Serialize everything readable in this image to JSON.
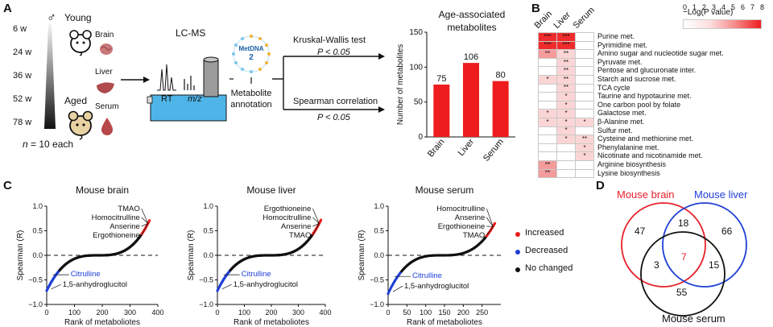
{
  "panel_letters": {
    "a": "A",
    "b": "B",
    "c": "C",
    "d": "D"
  },
  "panel_a": {
    "sex_symbol": "♂",
    "ages": [
      "6 w",
      "24 w",
      "36 w",
      "52 w",
      "78 w"
    ],
    "young_label": "Young",
    "aged_label": "Aged",
    "tissues": [
      "Brain",
      "Liver",
      "Serum"
    ],
    "n_label_italic": "n",
    "n_label_rest": " = 10 each",
    "lcms_label": "LC-MS",
    "rt_label": "RT",
    "mz_label": "m/z",
    "metdna_label": "MetDNA",
    "metdna_version": "2",
    "annotation_label_1": "Metabolite",
    "annotation_label_2": "annotation",
    "test1_label": "Kruskal-Wallis test",
    "test1_p": "P < 0.05",
    "test2_label": "Spearman correlation",
    "test2_p": "P < 0.05"
  },
  "panel_a_chart": {
    "chart_data": {
      "type": "bar",
      "title": "Age-associated metabolites",
      "ylabel": "Number of metabolites",
      "categories": [
        "Brain",
        "Liver",
        "Serum"
      ],
      "values": [
        75,
        106,
        80
      ],
      "ylim": [
        0,
        150
      ],
      "yticks": [
        "0",
        "50",
        "100",
        "150"
      ],
      "bar_color": "#ee1c1c"
    }
  },
  "panel_b": {
    "legend_title": "−Log(P value)",
    "legend_ticks": [
      "0",
      "1",
      "2",
      "3",
      "4",
      "5",
      "6",
      "7",
      "8"
    ],
    "columns": [
      "Brain",
      "Liver",
      "Serum"
    ],
    "rows": [
      {
        "name": "Purine met.",
        "cells": [
          "***",
          "***",
          ""
        ],
        "shade": [
          3,
          3,
          0
        ]
      },
      {
        "name": "Pyrimidine met.",
        "cells": [
          "***",
          "***",
          ""
        ],
        "shade": [
          3,
          3,
          0
        ]
      },
      {
        "name": "Amino sugar and nucleotide sugar met.",
        "cells": [
          "**",
          "**",
          ""
        ],
        "shade": [
          2,
          1,
          0
        ]
      },
      {
        "name": "Pyruvate met.",
        "cells": [
          "",
          "**",
          ""
        ],
        "shade": [
          0,
          1,
          0
        ]
      },
      {
        "name": "Pentose and glucuronate inter.",
        "cells": [
          "",
          "**",
          ""
        ],
        "shade": [
          0,
          1,
          0
        ]
      },
      {
        "name": "Starch and sucrose met.",
        "cells": [
          "*",
          "**",
          ""
        ],
        "shade": [
          1,
          1,
          0
        ]
      },
      {
        "name": "TCA cycle",
        "cells": [
          "",
          "**",
          ""
        ],
        "shade": [
          0,
          1,
          0
        ]
      },
      {
        "name": "Taurine and hypotaurine met.",
        "cells": [
          "",
          "*",
          ""
        ],
        "shade": [
          0,
          1,
          0
        ]
      },
      {
        "name": "One carbon pool by folate",
        "cells": [
          "",
          "*",
          ""
        ],
        "shade": [
          0,
          1,
          0
        ]
      },
      {
        "name": "Galactose met.",
        "cells": [
          "*",
          "*",
          ""
        ],
        "shade": [
          1,
          1,
          0
        ]
      },
      {
        "name": "β-Alanine met.",
        "cells": [
          "*",
          "*",
          "*"
        ],
        "shade": [
          1,
          1,
          1
        ]
      },
      {
        "name": "Sulfur met.",
        "cells": [
          "",
          "*",
          ""
        ],
        "shade": [
          0,
          1,
          0
        ]
      },
      {
        "name": "Cysteine and methionine met.",
        "cells": [
          "",
          "*",
          "**"
        ],
        "shade": [
          0,
          1,
          1
        ]
      },
      {
        "name": "Phenylalanine met.",
        "cells": [
          "",
          "",
          "*"
        ],
        "shade": [
          0,
          0,
          1
        ]
      },
      {
        "name": "Nicotinate and nicotinamide met.",
        "cells": [
          "",
          "",
          "*"
        ],
        "shade": [
          0,
          0,
          1
        ]
      },
      {
        "name": "Arginine biosynthesis",
        "cells": [
          "**",
          "",
          ""
        ],
        "shade": [
          2,
          0,
          0
        ]
      },
      {
        "name": "Lysine biosynthesis",
        "cells": [
          "**",
          "",
          ""
        ],
        "shade": [
          2,
          0,
          0
        ]
      }
    ],
    "shade_colors": [
      "#ffffff",
      "#fbd5d5",
      "#f49b9b",
      "#ef2b2b"
    ]
  },
  "panel_c": {
    "legend": {
      "increased": "Increased",
      "decreased": "Decreased",
      "no_change": "No changed"
    },
    "colors": {
      "increased": "#ee1c1c",
      "decreased": "#1f3fd6",
      "no_change": "#111111"
    },
    "yticks": [
      "1.0",
      "0.5",
      "0.0",
      "−0.5",
      "−1.0"
    ],
    "ylabel": "Spearman (R)",
    "xlabel": "Rank of metaboliotes",
    "plots": [
      {
        "title": "Mouse brain",
        "xticks": [
          "0",
          "100",
          "200",
          "300",
          "400"
        ],
        "top_labels": [
          "TMAO",
          "Homocitrulline",
          "Anserine",
          "Ergothioneine"
        ],
        "blue_label": "Citrulline",
        "bottom_label": "1,5-anhydroglucitol",
        "chart_data": {
          "type": "scatter",
          "n": 372,
          "xlim": [
            0,
            400
          ],
          "ylim": [
            -1.0,
            1.0
          ],
          "r_min": -0.72,
          "r_max": 0.72
        }
      },
      {
        "title": "Mouse liver",
        "xticks": [
          "0",
          "100",
          "200",
          "300",
          "400"
        ],
        "top_labels": [
          "Ergothioneine",
          "Homocitrulline",
          "Anserine",
          "TMAO"
        ],
        "blue_label": "Citrulline",
        "bottom_label": "1,5-anhydroglucitol",
        "chart_data": {
          "type": "scatter",
          "n": 385,
          "xlim": [
            0,
            400
          ],
          "ylim": [
            -1.0,
            1.0
          ],
          "r_min": -0.72,
          "r_max": 0.72
        }
      },
      {
        "title": "Mouse serum",
        "xticks": [
          "0",
          "50",
          "100",
          "150",
          "200",
          "250"
        ],
        "top_labels": [
          "Homocitrulline",
          "Anserine",
          "Ergothioneine",
          "TMAO"
        ],
        "blue_label": "Citrulline",
        "bottom_label": "1,5-anhydroglucitol",
        "chart_data": {
          "type": "scatter",
          "n": 285,
          "xlim": [
            0,
            300
          ],
          "ylim": [
            -1.0,
            1.0
          ],
          "r_min": -0.78,
          "r_max": 0.65
        }
      }
    ]
  },
  "panel_d": {
    "sets": [
      {
        "name": "Mouse brain",
        "color": "#e8202a"
      },
      {
        "name": "Mouse liver",
        "color": "#1f3fd6"
      },
      {
        "name": "Mouse serum",
        "color": "#111111"
      }
    ],
    "counts": {
      "brain_only": "47",
      "liver_only": "66",
      "serum_only": "55",
      "brain_liver": "18",
      "brain_serum": "3",
      "liver_serum": "15",
      "all_three": "7"
    },
    "all_three_color": "#e8202a"
  }
}
